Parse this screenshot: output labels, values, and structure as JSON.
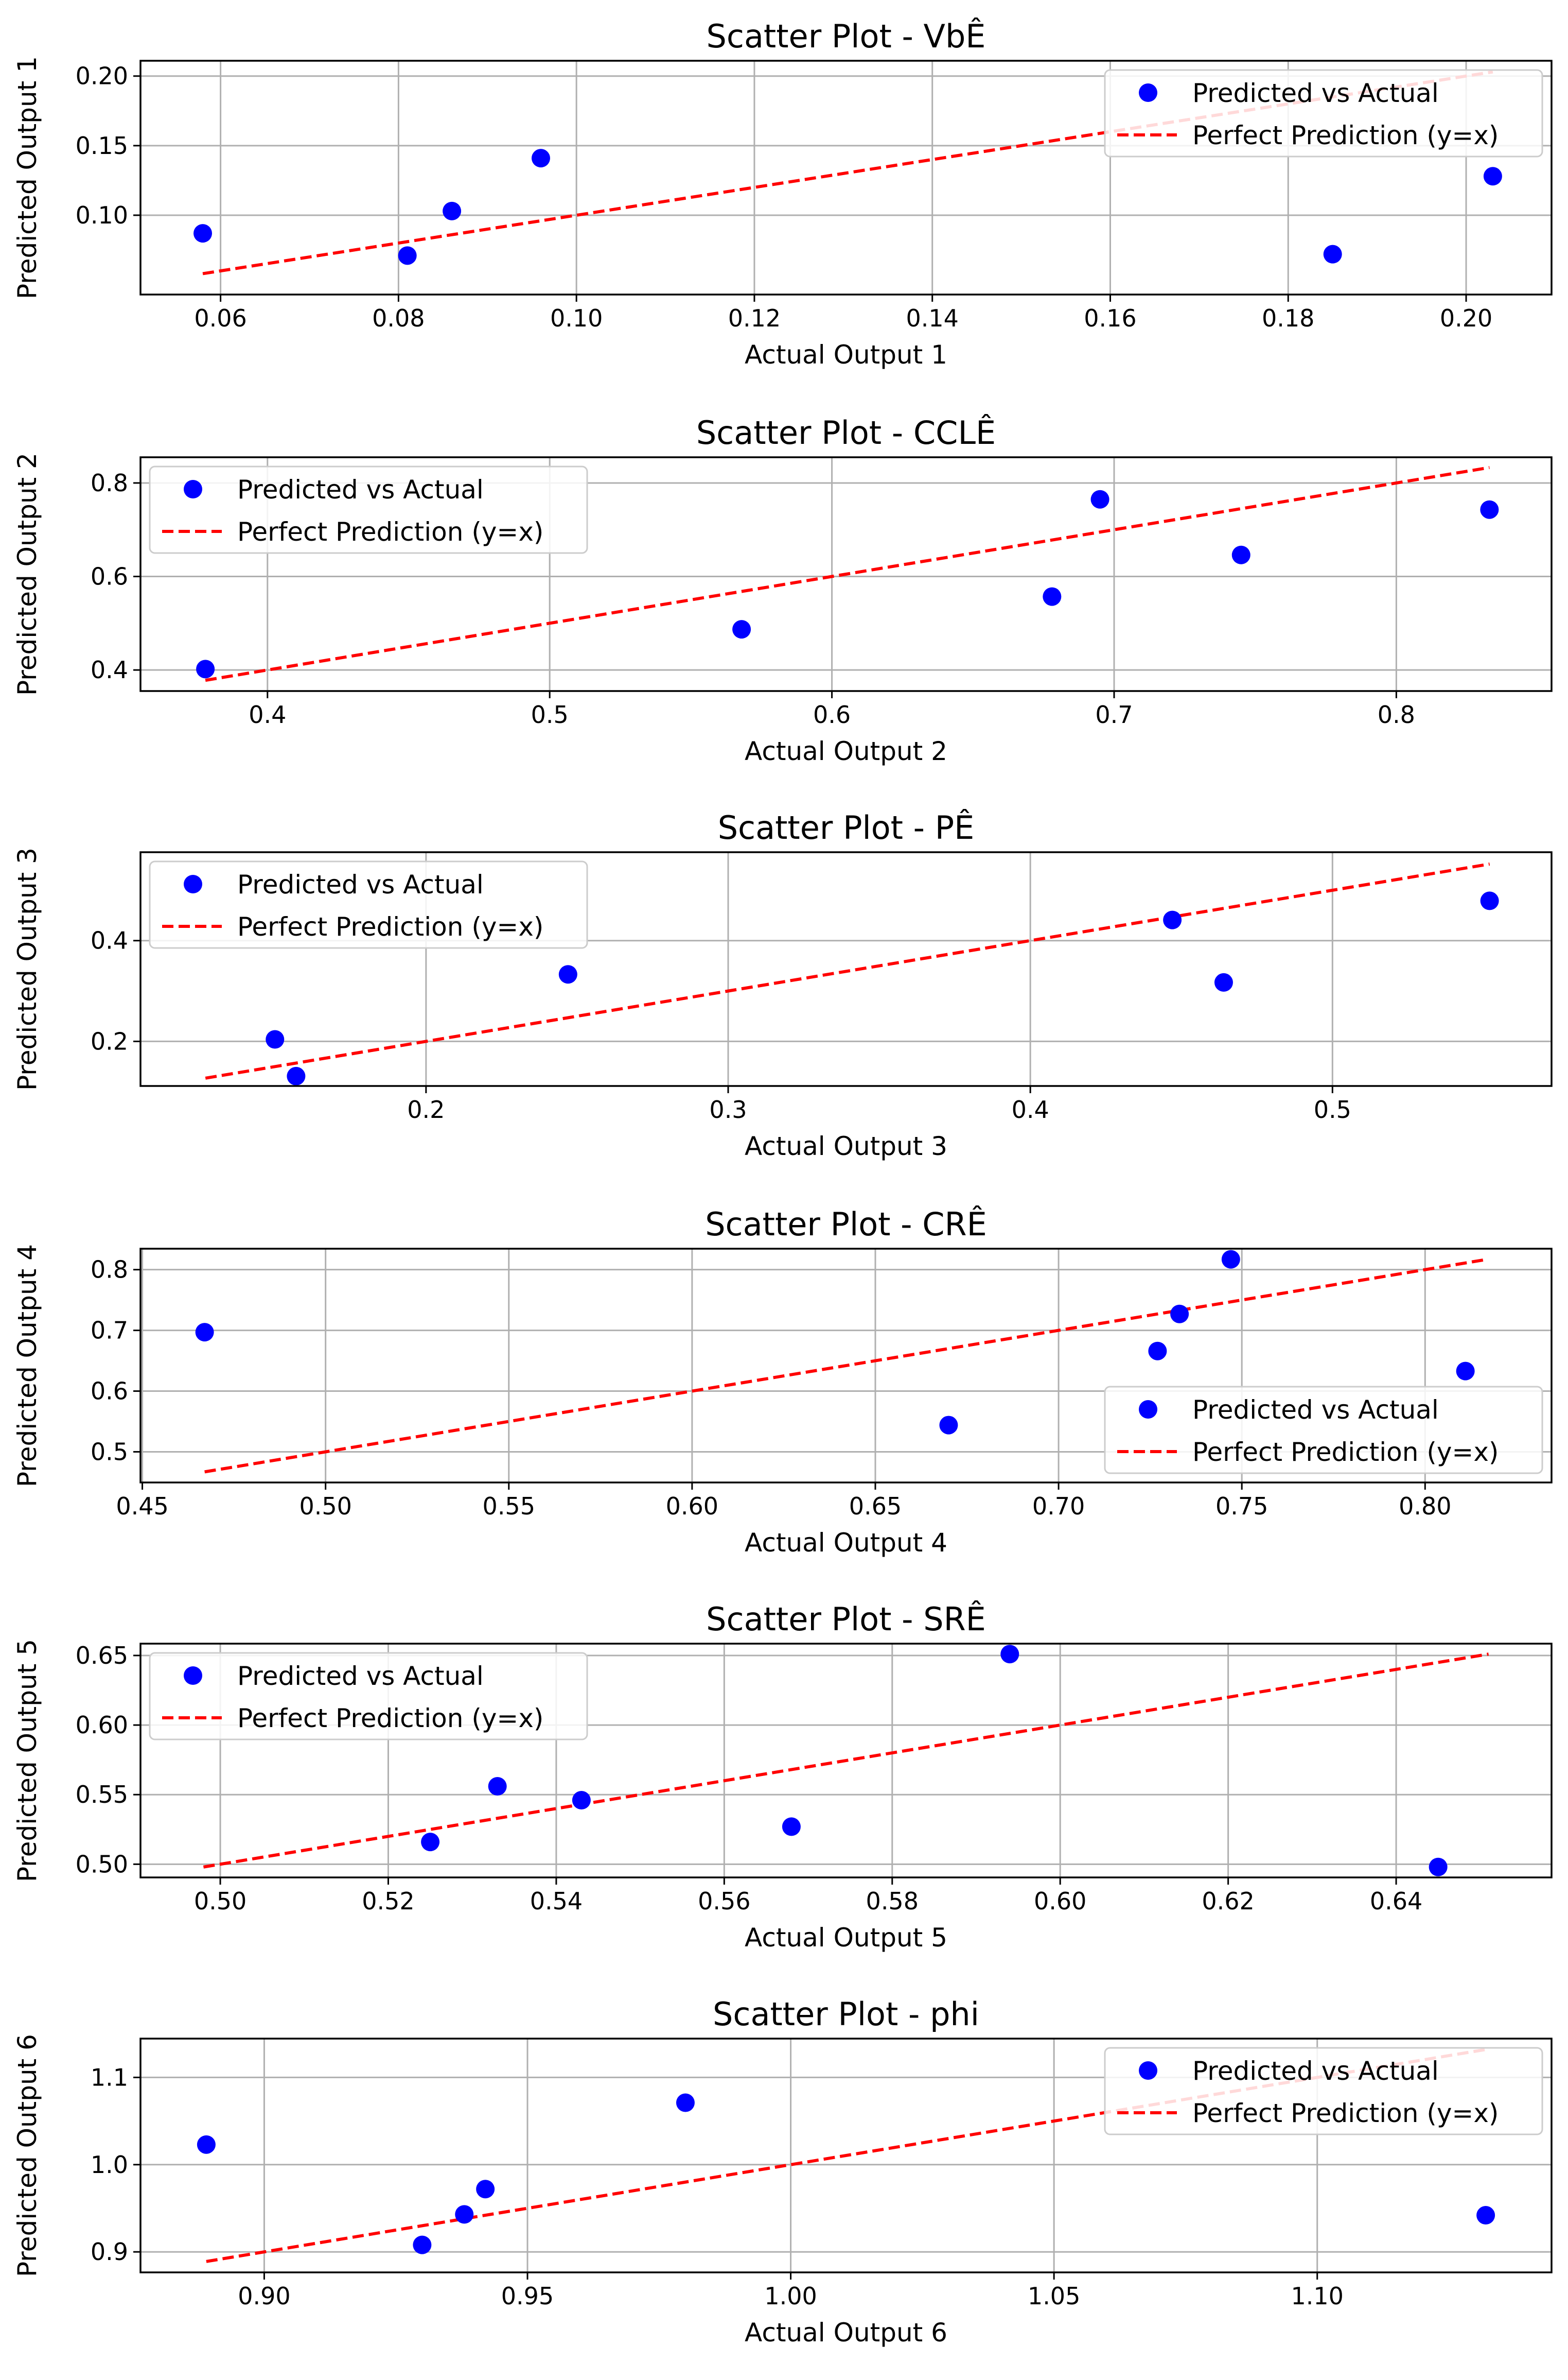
{
  "chart_data": [
    {
      "type": "scatter",
      "title": "Scatter Plot - VbÊ",
      "xlabel": "Actual Output 1",
      "ylabel": "Predicted Output 1",
      "xlim": [
        0.051,
        0.2096
      ],
      "ylim": [
        0.043,
        0.211
      ],
      "xticks": [
        0.06,
        0.08,
        0.1,
        0.12,
        0.14,
        0.16,
        0.18,
        0.2
      ],
      "xtick_labels": [
        "0.06",
        "0.08",
        "0.10",
        "0.12",
        "0.14",
        "0.16",
        "0.18",
        "0.20"
      ],
      "yticks": [
        0.1,
        0.15,
        0.2
      ],
      "ytick_labels": [
        "0.10",
        "0.15",
        "0.20"
      ],
      "grid": true,
      "legend_position": "top-right",
      "series": [
        {
          "name": "Predicted vs Actual",
          "kind": "points",
          "color": "#0000ff",
          "x": [
            0.058,
            0.081,
            0.086,
            0.096,
            0.185,
            0.203
          ],
          "y": [
            0.087,
            0.071,
            0.103,
            0.141,
            0.072,
            0.128
          ]
        },
        {
          "name": "Perfect Prediction (y=x)",
          "kind": "dashed-line",
          "color": "#ff0000",
          "x": [
            0.058,
            0.203
          ],
          "y": [
            0.058,
            0.203
          ]
        }
      ]
    },
    {
      "type": "scatter",
      "title": "Scatter Plot - CCLÊ",
      "xlabel": "Actual Output 2",
      "ylabel": "Predicted Output 2",
      "xlim": [
        0.355,
        0.855
      ],
      "ylim": [
        0.355,
        0.855
      ],
      "xticks": [
        0.4,
        0.5,
        0.6,
        0.7,
        0.8
      ],
      "xtick_labels": [
        "0.4",
        "0.5",
        "0.6",
        "0.7",
        "0.8"
      ],
      "yticks": [
        0.4,
        0.6,
        0.8
      ],
      "ytick_labels": [
        "0.4",
        "0.6",
        "0.8"
      ],
      "grid": true,
      "legend_position": "top-left",
      "series": [
        {
          "name": "Predicted vs Actual",
          "kind": "points",
          "color": "#0000ff",
          "x": [
            0.378,
            0.568,
            0.678,
            0.695,
            0.745,
            0.833
          ],
          "y": [
            0.402,
            0.487,
            0.557,
            0.765,
            0.646,
            0.743
          ]
        },
        {
          "name": "Perfect Prediction (y=x)",
          "kind": "dashed-line",
          "color": "#ff0000",
          "x": [
            0.378,
            0.833
          ],
          "y": [
            0.378,
            0.833
          ]
        }
      ]
    },
    {
      "type": "scatter",
      "title": "Scatter Plot - PÊ",
      "xlabel": "Actual Output 3",
      "ylabel": "Predicted Output 3",
      "xlim": [
        0.1055,
        0.5725
      ],
      "ylim": [
        0.1115,
        0.5755
      ],
      "xticks": [
        0.2,
        0.3,
        0.4,
        0.5
      ],
      "xtick_labels": [
        "0.2",
        "0.3",
        "0.4",
        "0.5"
      ],
      "yticks": [
        0.2,
        0.4
      ],
      "ytick_labels": [
        "0.2",
        "0.4"
      ],
      "grid": true,
      "legend_position": "top-left",
      "series": [
        {
          "name": "Predicted vs Actual",
          "kind": "points",
          "color": "#0000ff",
          "x": [
            0.15,
            0.157,
            0.247,
            0.447,
            0.464,
            0.552
          ],
          "y": [
            0.204,
            0.131,
            0.333,
            0.441,
            0.317,
            0.479
          ]
        },
        {
          "name": "Perfect Prediction (y=x)",
          "kind": "dashed-line",
          "color": "#ff0000",
          "x": [
            0.127,
            0.552
          ],
          "y": [
            0.127,
            0.552
          ]
        }
      ]
    },
    {
      "type": "scatter",
      "title": "Scatter Plot - CRÊ",
      "xlabel": "Actual Output 4",
      "ylabel": "Predicted Output 4",
      "xlim": [
        0.4495,
        0.8345
      ],
      "ylim": [
        0.4495,
        0.8345
      ],
      "xticks": [
        0.45,
        0.5,
        0.55,
        0.6,
        0.65,
        0.7,
        0.75,
        0.8
      ],
      "xtick_labels": [
        "0.45",
        "0.50",
        "0.55",
        "0.60",
        "0.65",
        "0.70",
        "0.75",
        "0.80"
      ],
      "yticks": [
        0.5,
        0.6,
        0.7,
        0.8
      ],
      "ytick_labels": [
        "0.5",
        "0.6",
        "0.7",
        "0.8"
      ],
      "grid": true,
      "legend_position": "lower-right",
      "series": [
        {
          "name": "Predicted vs Actual",
          "kind": "points",
          "color": "#0000ff",
          "x": [
            0.467,
            0.67,
            0.727,
            0.733,
            0.747,
            0.811
          ],
          "y": [
            0.697,
            0.544,
            0.666,
            0.727,
            0.817,
            0.633
          ]
        },
        {
          "name": "Perfect Prediction (y=x)",
          "kind": "dashed-line",
          "color": "#ff0000",
          "x": [
            0.467,
            0.817
          ],
          "y": [
            0.467,
            0.817
          ]
        }
      ]
    },
    {
      "type": "scatter",
      "title": "Scatter Plot - SRÊ",
      "xlabel": "Actual Output 5",
      "ylabel": "Predicted Output 5",
      "xlim": [
        0.4905,
        0.6585
      ],
      "ylim": [
        0.4905,
        0.6585
      ],
      "xticks": [
        0.5,
        0.52,
        0.54,
        0.56,
        0.58,
        0.6,
        0.62,
        0.64
      ],
      "xtick_labels": [
        "0.50",
        "0.52",
        "0.54",
        "0.56",
        "0.58",
        "0.60",
        "0.62",
        "0.64"
      ],
      "yticks": [
        0.5,
        0.55,
        0.6,
        0.65
      ],
      "ytick_labels": [
        "0.50",
        "0.55",
        "0.60",
        "0.65"
      ],
      "grid": true,
      "legend_position": "top-left",
      "series": [
        {
          "name": "Predicted vs Actual",
          "kind": "points",
          "color": "#0000ff",
          "x": [
            0.525,
            0.533,
            0.543,
            0.568,
            0.594,
            0.645
          ],
          "y": [
            0.516,
            0.556,
            0.546,
            0.527,
            0.651,
            0.498
          ]
        },
        {
          "name": "Perfect Prediction (y=x)",
          "kind": "dashed-line",
          "color": "#ff0000",
          "x": [
            0.498,
            0.651
          ],
          "y": [
            0.498,
            0.651
          ]
        }
      ]
    },
    {
      "type": "scatter",
      "title": "Scatter Plot - phi",
      "xlabel": "Actual Output 6",
      "ylabel": "Predicted Output 6",
      "xlim": [
        0.8765,
        1.1445
      ],
      "ylim": [
        0.8765,
        1.1445
      ],
      "xticks": [
        0.9,
        0.95,
        1.0,
        1.05,
        1.1
      ],
      "xtick_labels": [
        "0.90",
        "0.95",
        "1.00",
        "1.05",
        "1.10"
      ],
      "yticks": [
        0.9,
        1.0,
        1.1
      ],
      "ytick_labels": [
        "0.9",
        "1.0",
        "1.1"
      ],
      "grid": true,
      "legend_position": "top-right",
      "series": [
        {
          "name": "Predicted vs Actual",
          "kind": "points",
          "color": "#0000ff",
          "x": [
            0.889,
            0.93,
            0.938,
            0.942,
            0.98,
            1.132
          ],
          "y": [
            1.023,
            0.908,
            0.943,
            0.972,
            1.071,
            0.942
          ]
        },
        {
          "name": "Perfect Prediction (y=x)",
          "kind": "dashed-line",
          "color": "#ff0000",
          "x": [
            0.889,
            1.132
          ],
          "y": [
            0.889,
            1.132
          ]
        }
      ]
    }
  ]
}
